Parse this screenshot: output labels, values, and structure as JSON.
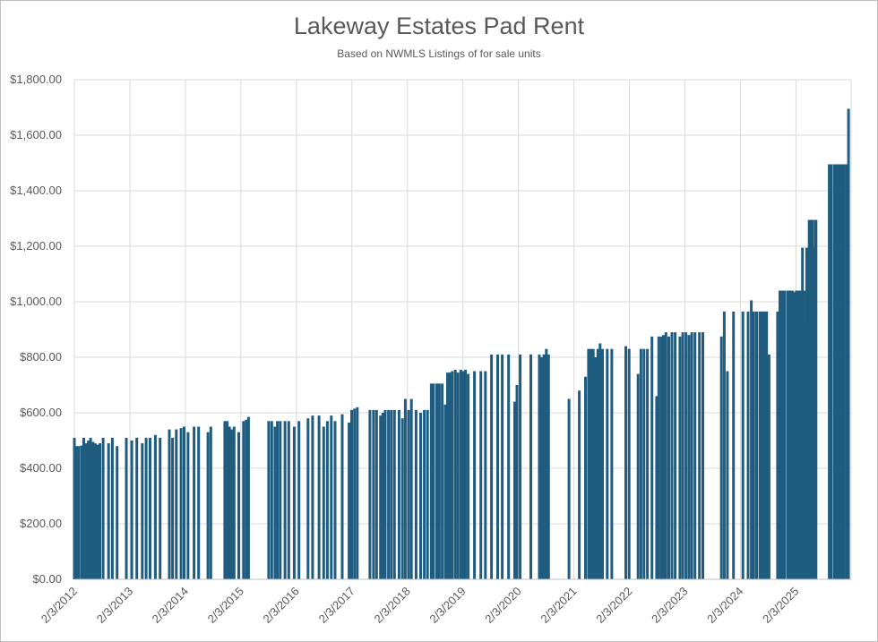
{
  "chart_data": {
    "type": "bar",
    "title": "Lakeway Estates Pad Rent",
    "subtitle": "Based on NWMLS Listings of for sale units",
    "xlabel": "",
    "ylabel": "",
    "ylim": [
      0,
      1800
    ],
    "xlim": [
      "2/3/2012",
      "7/1/2025"
    ],
    "y_ticks": [
      "$0.00",
      "$200.00",
      "$400.00",
      "$600.00",
      "$800.00",
      "$1,000.00",
      "$1,200.00",
      "$1,400.00",
      "$1,600.00",
      "$1,800.00"
    ],
    "x_ticks": [
      "2/3/2012",
      "2/3/2013",
      "2/3/2014",
      "2/3/2015",
      "2/3/2016",
      "2/3/2017",
      "2/3/2018",
      "2/3/2019",
      "2/3/2020",
      "2/3/2021",
      "2/3/2022",
      "2/3/2023",
      "2/3/2024",
      "2/3/2025"
    ],
    "grid": true,
    "bar_color": "#1f5c7f",
    "points": [
      [
        "2012-02-03",
        510
      ],
      [
        "2012-02-15",
        480
      ],
      [
        "2012-03-01",
        480
      ],
      [
        "2012-03-20",
        482
      ],
      [
        "2012-04-05",
        510
      ],
      [
        "2012-04-20",
        490
      ],
      [
        "2012-05-05",
        500
      ],
      [
        "2012-05-20",
        510
      ],
      [
        "2012-06-05",
        495
      ],
      [
        "2012-06-20",
        490
      ],
      [
        "2012-07-05",
        485
      ],
      [
        "2012-07-20",
        490
      ],
      [
        "2012-08-10",
        510
      ],
      [
        "2012-09-15",
        490
      ],
      [
        "2012-10-10",
        510
      ],
      [
        "2012-11-10",
        480
      ],
      [
        "2013-01-10",
        510
      ],
      [
        "2013-02-15",
        500
      ],
      [
        "2013-03-20",
        510
      ],
      [
        "2013-04-25",
        490
      ],
      [
        "2013-05-20",
        510
      ],
      [
        "2013-06-15",
        510
      ],
      [
        "2013-07-20",
        520
      ],
      [
        "2013-08-20",
        510
      ],
      [
        "2013-10-20",
        540
      ],
      [
        "2013-11-10",
        510
      ],
      [
        "2013-12-05",
        540
      ],
      [
        "2014-01-05",
        545
      ],
      [
        "2014-01-25",
        550
      ],
      [
        "2014-02-20",
        530
      ],
      [
        "2014-04-01",
        550
      ],
      [
        "2014-05-01",
        550
      ],
      [
        "2014-07-01",
        530
      ],
      [
        "2014-07-20",
        550
      ],
      [
        "2014-10-20",
        570
      ],
      [
        "2014-11-05",
        570
      ],
      [
        "2014-11-20",
        550
      ],
      [
        "2014-12-05",
        540
      ],
      [
        "2014-12-20",
        550
      ],
      [
        "2015-01-20",
        530
      ],
      [
        "2015-02-20",
        570
      ],
      [
        "2015-03-10",
        575
      ],
      [
        "2015-03-25",
        585
      ],
      [
        "2015-08-05",
        570
      ],
      [
        "2015-08-25",
        570
      ],
      [
        "2015-09-15",
        550
      ],
      [
        "2015-10-01",
        570
      ],
      [
        "2015-10-20",
        570
      ],
      [
        "2015-11-20",
        570
      ],
      [
        "2015-12-15",
        570
      ],
      [
        "2016-01-20",
        550
      ],
      [
        "2016-02-20",
        570
      ],
      [
        "2016-04-20",
        580
      ],
      [
        "2016-05-20",
        590
      ],
      [
        "2016-07-01",
        590
      ],
      [
        "2016-08-01",
        550
      ],
      [
        "2016-08-25",
        570
      ],
      [
        "2016-09-20",
        590
      ],
      [
        "2016-10-15",
        570
      ],
      [
        "2016-12-01",
        595
      ],
      [
        "2017-01-15",
        565
      ],
      [
        "2017-02-01",
        610
      ],
      [
        "2017-02-20",
        615
      ],
      [
        "2017-03-10",
        620
      ],
      [
        "2017-06-01",
        610
      ],
      [
        "2017-06-25",
        610
      ],
      [
        "2017-07-15",
        610
      ],
      [
        "2017-08-10",
        590
      ],
      [
        "2017-08-25",
        600
      ],
      [
        "2017-09-10",
        610
      ],
      [
        "2017-10-01",
        610
      ],
      [
        "2017-10-20",
        610
      ],
      [
        "2017-11-10",
        610
      ],
      [
        "2017-12-10",
        610
      ],
      [
        "2018-01-01",
        580
      ],
      [
        "2018-01-20",
        650
      ],
      [
        "2018-02-10",
        610
      ],
      [
        "2018-03-01",
        650
      ],
      [
        "2018-04-01",
        610
      ],
      [
        "2018-05-01",
        600
      ],
      [
        "2018-05-25",
        610
      ],
      [
        "2018-06-15",
        610
      ],
      [
        "2018-07-10",
        705
      ],
      [
        "2018-07-25",
        705
      ],
      [
        "2018-08-15",
        705
      ],
      [
        "2018-09-01",
        705
      ],
      [
        "2018-09-20",
        705
      ],
      [
        "2018-10-10",
        630
      ],
      [
        "2018-10-25",
        745
      ],
      [
        "2018-11-10",
        745
      ],
      [
        "2018-11-25",
        750
      ],
      [
        "2018-12-15",
        755
      ],
      [
        "2019-01-01",
        745
      ],
      [
        "2019-01-20",
        755
      ],
      [
        "2019-02-05",
        750
      ],
      [
        "2019-02-20",
        755
      ],
      [
        "2019-03-10",
        740
      ],
      [
        "2019-04-20",
        750
      ],
      [
        "2019-06-01",
        750
      ],
      [
        "2019-07-01",
        750
      ],
      [
        "2019-08-10",
        810
      ],
      [
        "2019-09-20",
        810
      ],
      [
        "2019-10-20",
        810
      ],
      [
        "2019-12-01",
        810
      ],
      [
        "2020-01-10",
        640
      ],
      [
        "2020-01-25",
        700
      ],
      [
        "2020-02-15",
        810
      ],
      [
        "2020-04-25",
        810
      ],
      [
        "2020-06-20",
        810
      ],
      [
        "2020-07-05",
        800
      ],
      [
        "2020-07-20",
        810
      ],
      [
        "2020-08-05",
        830
      ],
      [
        "2020-08-20",
        810
      ],
      [
        "2021-01-01",
        650
      ],
      [
        "2021-03-10",
        680
      ],
      [
        "2021-04-20",
        730
      ],
      [
        "2021-05-10",
        830
      ],
      [
        "2021-05-25",
        830
      ],
      [
        "2021-06-10",
        830
      ],
      [
        "2021-06-25",
        800
      ],
      [
        "2021-07-10",
        830
      ],
      [
        "2021-07-25",
        850
      ],
      [
        "2021-08-10",
        830
      ],
      [
        "2021-09-10",
        830
      ],
      [
        "2021-10-10",
        830
      ],
      [
        "2022-01-10",
        840
      ],
      [
        "2022-02-01",
        830
      ],
      [
        "2022-04-01",
        740
      ],
      [
        "2022-04-20",
        830
      ],
      [
        "2022-05-10",
        830
      ],
      [
        "2022-06-01",
        830
      ],
      [
        "2022-07-01",
        875
      ],
      [
        "2022-08-01",
        660
      ],
      [
        "2022-08-15",
        875
      ],
      [
        "2022-09-01",
        875
      ],
      [
        "2022-09-15",
        880
      ],
      [
        "2022-10-01",
        890
      ],
      [
        "2022-10-20",
        875
      ],
      [
        "2022-11-10",
        890
      ],
      [
        "2022-12-01",
        890
      ],
      [
        "2023-01-01",
        875
      ],
      [
        "2023-01-20",
        890
      ],
      [
        "2023-02-10",
        890
      ],
      [
        "2023-03-01",
        880
      ],
      [
        "2023-03-20",
        890
      ],
      [
        "2023-04-10",
        890
      ],
      [
        "2023-05-10",
        890
      ],
      [
        "2023-06-01",
        890
      ],
      [
        "2023-10-01",
        875
      ],
      [
        "2023-10-20",
        965
      ],
      [
        "2023-11-10",
        750
      ],
      [
        "2023-12-20",
        965
      ],
      [
        "2024-02-20",
        965
      ],
      [
        "2024-03-25",
        965
      ],
      [
        "2024-04-15",
        1005
      ],
      [
        "2024-05-01",
        965
      ],
      [
        "2024-05-20",
        965
      ],
      [
        "2024-06-10",
        965
      ],
      [
        "2024-06-25",
        965
      ],
      [
        "2024-07-10",
        965
      ],
      [
        "2024-07-25",
        965
      ],
      [
        "2024-08-10",
        810
      ],
      [
        "2024-10-05",
        965
      ],
      [
        "2024-11-20",
        1040
      ],
      [
        "2024-12-10",
        1040
      ],
      [
        "2025-01-01",
        1040
      ],
      [
        "2025-01-20",
        1035
      ],
      [
        "2025-02-05",
        1040
      ],
      [
        "2025-02-20",
        1040
      ],
      [
        "2025-03-10",
        1040
      ],
      [
        "2025-03-25",
        1040
      ],
      [
        "2025-04-10",
        1040
      ],
      [
        "2024-10-20",
        1040
      ],
      [
        "2024-11-05",
        1040
      ],
      [
        "2024-12-25",
        1040
      ],
      [
        "2025-01-10",
        1040
      ],
      [
        "2025-02-12",
        1040
      ],
      [
        "2025-02-25",
        1040
      ],
      [
        "2025-03-05",
        1040
      ],
      [
        "2025-03-18",
        1195
      ],
      [
        "2025-04-01",
        930
      ],
      [
        "2025-04-15",
        1195
      ],
      [
        "2025-04-25",
        960
      ],
      [
        "2025-05-01",
        1295
      ],
      [
        "2025-05-08",
        1295
      ],
      [
        "2025-05-15",
        1295
      ],
      [
        "2025-05-22",
        1295
      ],
      [
        "2025-05-29",
        1040
      ],
      [
        "2025-06-05",
        1195
      ],
      [
        "2025-06-10",
        1295
      ],
      [
        "2025-06-15",
        1295
      ],
      [
        "2025-09-10",
        1495
      ],
      [
        "2025-09-25",
        1495
      ],
      [
        "2025-10-15",
        1495
      ],
      [
        "2025-10-30",
        1495
      ],
      [
        "2025-11-15",
        1495
      ],
      [
        "2025-11-30",
        1495
      ],
      [
        "2025-12-15",
        1495
      ],
      [
        "2026-01-01",
        1495
      ],
      [
        "2026-01-15",
        1695
      ]
    ]
  }
}
